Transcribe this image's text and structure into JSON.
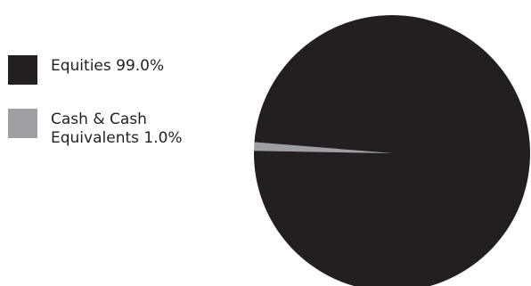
{
  "chart_data": {
    "type": "pie",
    "slices": [
      {
        "label": "Equities 99.0%",
        "value": 99.0,
        "color": "#231f20"
      },
      {
        "label": "Cash & Cash\nEquivalents 1.0%",
        "value": 1.0,
        "color": "#9d9fa2"
      }
    ],
    "legend_position": "left"
  }
}
